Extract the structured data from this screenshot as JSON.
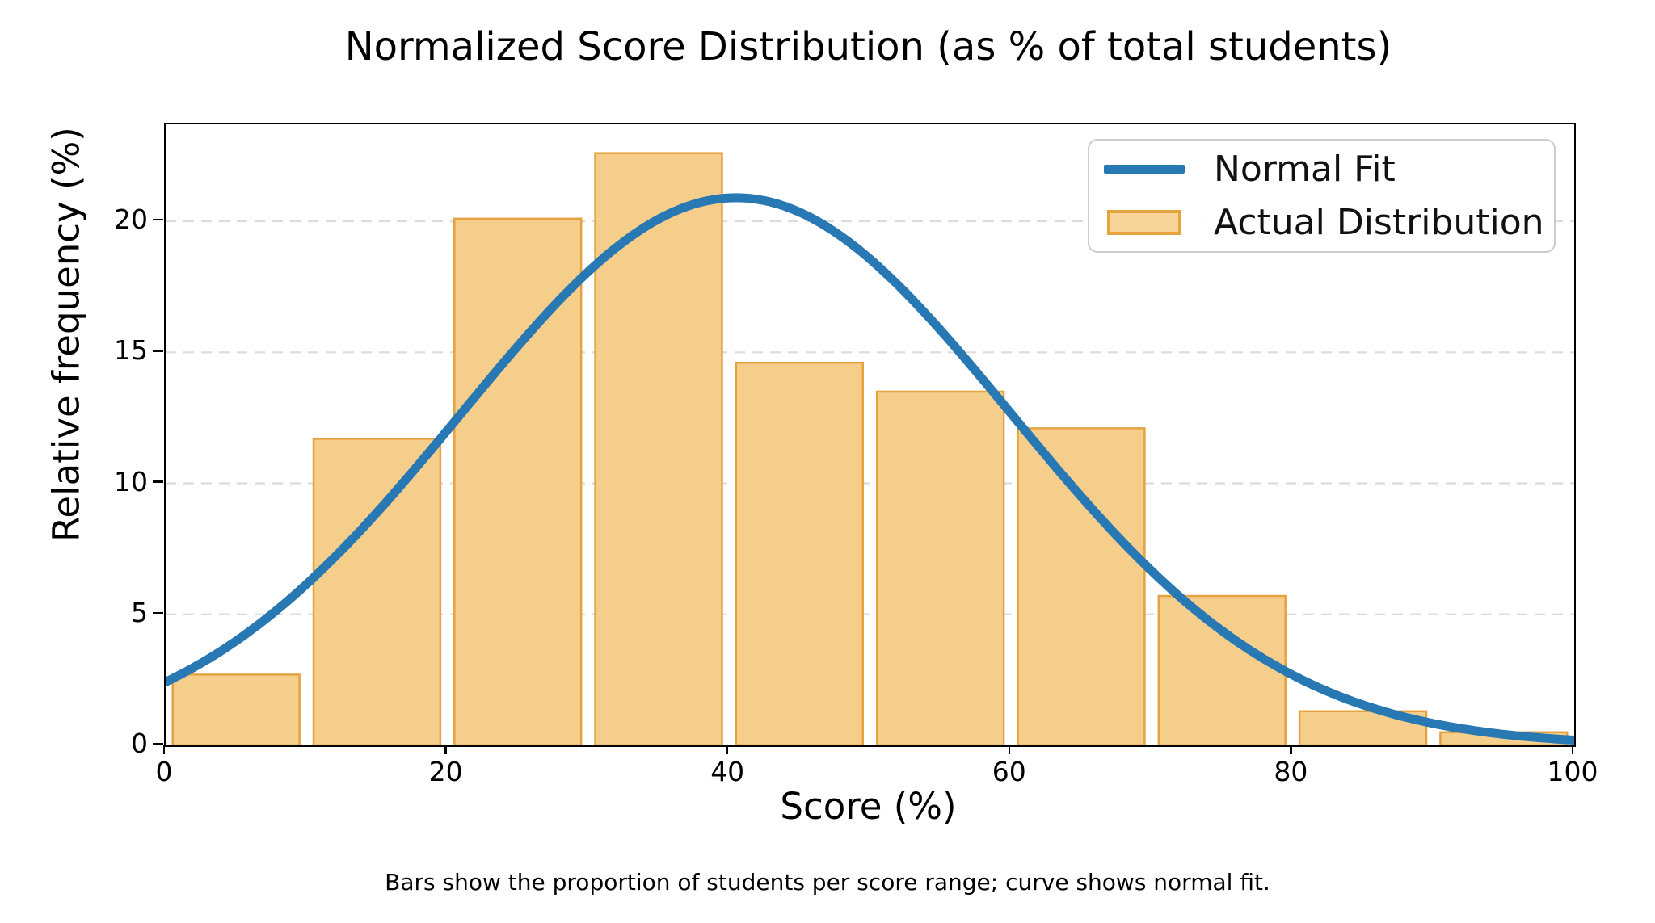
{
  "figure": {
    "title": "Normalized Score Distribution (as % of total students)",
    "xlabel": "Score (%)",
    "ylabel": "Relative frequency (%)",
    "caption": "Bars show the proportion of students per score range; curve shows normal fit."
  },
  "chart_data": {
    "type": "bar",
    "subtype": "histogram-with-normal-fit-line",
    "title": "Normalized Score Distribution (as % of total students)",
    "xlabel": "Score (%)",
    "ylabel": "Relative frequency (%)",
    "xlim": [
      0,
      100
    ],
    "ylim": [
      0,
      23.7
    ],
    "x_ticks": [
      0,
      20,
      40,
      60,
      80,
      100
    ],
    "y_ticks": [
      0,
      5,
      10,
      15,
      20
    ],
    "grid": "horizontal dashed gridlines at y ticks",
    "grid_color": "#dcdcdc",
    "bars": {
      "name": "Actual Distribution",
      "bin_edges": [
        0,
        10,
        20,
        30,
        40,
        50,
        60,
        70,
        80,
        90,
        100
      ],
      "bar_width_units": 9,
      "values": [
        2.7,
        11.7,
        20.1,
        22.6,
        14.6,
        13.5,
        12.1,
        5.7,
        1.3,
        0.5
      ],
      "fill_color": "#f5ce8c",
      "edge_color": "#e4a33f"
    },
    "curve": {
      "name": "Normal Fit",
      "shape": "gaussian",
      "amplitude": 20.9,
      "mean": 40.5,
      "sigma": 19.5,
      "sample_x": [
        0,
        10,
        20,
        30,
        40,
        50,
        60,
        70,
        80,
        90,
        100
      ],
      "sample_y": [
        2.4,
        6.2,
        12.2,
        18.1,
        20.9,
        18.6,
        12.7,
        6.7,
        2.7,
        0.8,
        0.2
      ],
      "color": "#2878b4",
      "line_width": 11
    },
    "legend": {
      "position": "upper right",
      "entries": [
        {
          "label": "Normal Fit",
          "type": "line",
          "color": "#2878b4"
        },
        {
          "label": "Actual Distribution",
          "type": "patch",
          "fill": "#f7d497",
          "edge": "#e4a33f"
        }
      ]
    }
  }
}
